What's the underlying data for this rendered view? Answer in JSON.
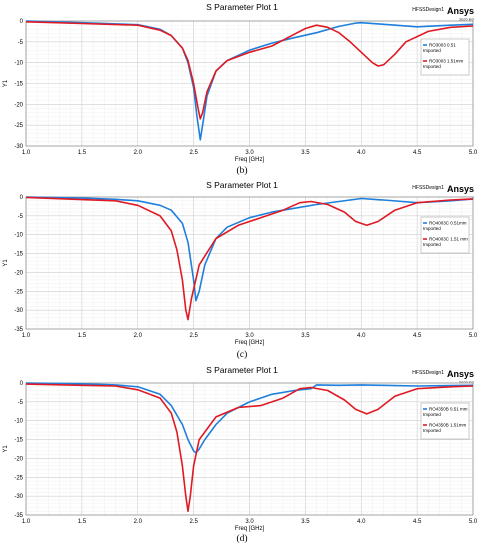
{
  "chart_data": [
    {
      "type": "line",
      "title": "S Parameter Plot 1",
      "design": "HFSSDesign1",
      "brand": "Ansys",
      "year": "2022 R2",
      "caption": "(b)",
      "xlabel": "Freq [GHz]",
      "ylabel": "Y1",
      "xlim": [
        1.0,
        5.0
      ],
      "ylim": [
        -30,
        0
      ],
      "xticks": [
        "1.0",
        "1.5",
        "2.0",
        "2.5",
        "3.0",
        "3.5",
        "4.0",
        "4.5",
        "5.0"
      ],
      "yticks": [
        "0",
        "-5",
        "-10",
        "-15",
        "-20",
        "-25",
        "-30"
      ],
      "grid": true,
      "legend_position": "top-right",
      "series": [
        {
          "name": "RO3003 0.51",
          "note": "Imported",
          "color": "#1e7fdc",
          "x": [
            1.0,
            1.5,
            2.0,
            2.2,
            2.3,
            2.4,
            2.45,
            2.5,
            2.53,
            2.56,
            2.58,
            2.62,
            2.7,
            2.8,
            3.0,
            3.2,
            3.4,
            3.6,
            3.8,
            3.95,
            4.0,
            4.2,
            4.5,
            4.8,
            5.0
          ],
          "y": [
            0,
            -0.4,
            -0.9,
            -2.0,
            -3.5,
            -6.5,
            -10,
            -16,
            -23,
            -28.5,
            -25,
            -18,
            -12,
            -9.5,
            -7.0,
            -5.3,
            -4.0,
            -2.8,
            -1.3,
            -0.5,
            -0.4,
            -0.8,
            -1.4,
            -1.0,
            -0.8
          ]
        },
        {
          "name": "RO3003 1.51mm",
          "note": "Imported",
          "color": "#e01a22",
          "x": [
            1.0,
            1.5,
            2.0,
            2.2,
            2.3,
            2.4,
            2.45,
            2.5,
            2.54,
            2.56,
            2.58,
            2.62,
            2.7,
            2.8,
            3.0,
            3.2,
            3.4,
            3.5,
            3.6,
            3.7,
            3.8,
            3.9,
            4.0,
            4.1,
            4.15,
            4.2,
            4.3,
            4.4,
            4.6,
            4.8,
            5.0
          ],
          "y": [
            -0.2,
            -0.6,
            -1.0,
            -2.2,
            -3.5,
            -6.5,
            -9.5,
            -15,
            -21,
            -23.5,
            -22,
            -17,
            -12,
            -9.5,
            -7.5,
            -6.0,
            -3.2,
            -1.8,
            -1.0,
            -1.5,
            -2.8,
            -5.0,
            -7.5,
            -10,
            -10.8,
            -10.5,
            -8.0,
            -5.0,
            -2.5,
            -1.5,
            -1.2
          ]
        }
      ]
    },
    {
      "type": "line",
      "title": "S Parameter Plot 1",
      "design": "HFSSDesign1",
      "brand": "Ansys",
      "year": "2022 R2",
      "caption": "(c)",
      "xlabel": "Freq [GHz]",
      "ylabel": "Y1",
      "xlim": [
        1.0,
        5.0
      ],
      "ylim": [
        -35,
        0
      ],
      "xticks": [
        "1.0",
        "1.5",
        "2.0",
        "2.5",
        "3.0",
        "3.5",
        "4.0",
        "4.5",
        "5.0"
      ],
      "yticks": [
        "0",
        "-5",
        "-10",
        "-15",
        "-20",
        "-25",
        "-30",
        "-35"
      ],
      "grid": true,
      "legend_position": "right",
      "series": [
        {
          "name": "RO4003C 0.51mm",
          "note": "Imported",
          "color": "#1e7fdc",
          "x": [
            1.0,
            1.5,
            1.8,
            2.0,
            2.2,
            2.3,
            2.4,
            2.45,
            2.5,
            2.52,
            2.55,
            2.6,
            2.7,
            2.8,
            3.0,
            3.2,
            3.4,
            3.6,
            3.8,
            4.0,
            4.2,
            4.5,
            4.8,
            5.0
          ],
          "y": [
            0,
            -0.3,
            -0.6,
            -1.0,
            -2.2,
            -3.5,
            -7.0,
            -12,
            -22,
            -27.5,
            -25,
            -18,
            -11,
            -8.0,
            -5.5,
            -4.0,
            -3.0,
            -2.0,
            -1.2,
            -0.4,
            -0.8,
            -1.5,
            -1.0,
            -0.5
          ]
        },
        {
          "name": "RO4003C 1.51 mm",
          "note": "Imported",
          "color": "#e01a22",
          "x": [
            1.0,
            1.5,
            1.8,
            2.0,
            2.2,
            2.3,
            2.35,
            2.4,
            2.43,
            2.45,
            2.48,
            2.55,
            2.7,
            2.9,
            3.1,
            3.3,
            3.45,
            3.55,
            3.7,
            3.85,
            3.95,
            4.05,
            4.15,
            4.3,
            4.5,
            4.8,
            5.0
          ],
          "y": [
            -0.1,
            -0.7,
            -1.0,
            -2.2,
            -5.0,
            -9.0,
            -14,
            -22,
            -30,
            -32.5,
            -27,
            -18,
            -11,
            -7.5,
            -5.5,
            -3.5,
            -1.5,
            -1.2,
            -2.0,
            -4.0,
            -6.5,
            -7.5,
            -6.5,
            -3.5,
            -1.5,
            -0.8,
            -0.5
          ]
        }
      ]
    },
    {
      "type": "line",
      "title": "S Parameter Plot 1",
      "design": "HFSSDesign1",
      "brand": "Ansys",
      "year": "2022 R2",
      "caption": "(d)",
      "xlabel": "Freq [GHz]",
      "ylabel": "Y1",
      "xlim": [
        1.0,
        5.0
      ],
      "ylim": [
        -35,
        0
      ],
      "xticks": [
        "1.0",
        "1.5",
        "2.0",
        "2.5",
        "3.0",
        "3.5",
        "4.0",
        "4.5",
        "5.0"
      ],
      "yticks": [
        "0",
        "-5",
        "-10",
        "-15",
        "-20",
        "-25",
        "-30",
        "-35"
      ],
      "grid": true,
      "legend_position": "right",
      "series": [
        {
          "name": "RO4350B 0.51 mm",
          "note": "Imported",
          "color": "#1e7fdc",
          "x": [
            1.0,
            1.5,
            1.8,
            2.0,
            2.2,
            2.3,
            2.4,
            2.45,
            2.5,
            2.52,
            2.55,
            2.6,
            2.7,
            2.8,
            3.0,
            3.2,
            3.4,
            3.55,
            3.6,
            3.8,
            4.0,
            4.2,
            4.5,
            4.8,
            5.0
          ],
          "y": [
            0,
            -0.2,
            -0.5,
            -1.0,
            -3.0,
            -6.0,
            -11,
            -15,
            -18,
            -18.5,
            -17.5,
            -15,
            -11,
            -8.0,
            -5.0,
            -3.0,
            -2.0,
            -1.5,
            -0.5,
            -0.6,
            -0.5,
            -0.6,
            -0.8,
            -0.7,
            -0.6
          ]
        },
        {
          "name": "RO4350B 1.51mm",
          "note": "Imported",
          "color": "#e01a22",
          "x": [
            1.0,
            1.5,
            1.8,
            2.0,
            2.2,
            2.3,
            2.35,
            2.4,
            2.43,
            2.45,
            2.47,
            2.5,
            2.55,
            2.7,
            2.9,
            3.1,
            3.3,
            3.45,
            3.55,
            3.7,
            3.85,
            3.95,
            4.05,
            4.15,
            4.3,
            4.5,
            4.8,
            5.0
          ],
          "y": [
            -0.3,
            -0.6,
            -0.8,
            -1.8,
            -4.0,
            -8.0,
            -13,
            -22,
            -30,
            -34,
            -30,
            -22,
            -15,
            -9.0,
            -6.5,
            -6.0,
            -4.0,
            -1.5,
            -1.2,
            -2.0,
            -4.5,
            -7.0,
            -8.2,
            -7.0,
            -3.5,
            -1.5,
            -1.0,
            -0.8
          ]
        }
      ]
    }
  ]
}
